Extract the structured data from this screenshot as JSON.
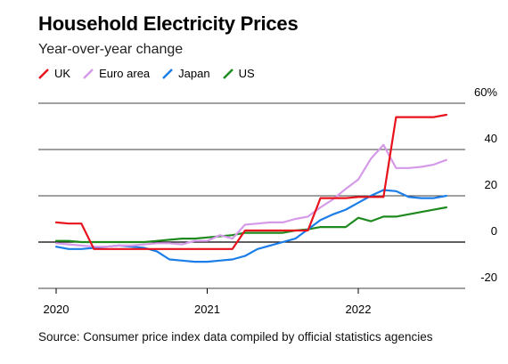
{
  "title": "Household Electricity Prices",
  "subtitle": "Year-over-year change",
  "source": "Source: Consumer price index data compiled by official statistics agencies",
  "chart_data": {
    "type": "line",
    "title": "Household Electricity Prices",
    "subtitle": "Year-over-year change",
    "xlabel": "",
    "ylabel": "",
    "y_unit": "%",
    "ylim": [
      -20,
      60
    ],
    "xlim": [
      "2019-12",
      "2022-09"
    ],
    "y_ticks": [
      "60%",
      "40",
      "20",
      "0",
      "-20"
    ],
    "y_tick_values": [
      60,
      40,
      20,
      0,
      -20
    ],
    "x_ticks": [
      "2020",
      "2021",
      "2022"
    ],
    "x_tick_values": [
      "2020-01",
      "2021-01",
      "2022-01"
    ],
    "grid": true,
    "legend_position": "top-left",
    "series": [
      {
        "name": "UK",
        "color": "#e8121c",
        "x": [
          "2020-01",
          "2020-02",
          "2020-03",
          "2020-04",
          "2020-05",
          "2020-06",
          "2020-07",
          "2020-08",
          "2020-09",
          "2020-10",
          "2020-11",
          "2020-12",
          "2021-01",
          "2021-02",
          "2021-03",
          "2021-04",
          "2021-05",
          "2021-06",
          "2021-07",
          "2021-08",
          "2021-09",
          "2021-10",
          "2021-11",
          "2021-12",
          "2022-01",
          "2022-02",
          "2022-03",
          "2022-04",
          "2022-05",
          "2022-06",
          "2022-07",
          "2022-08"
        ],
        "values": [
          8.5,
          8.0,
          8.0,
          -3.0,
          -3.0,
          -3.0,
          -3.0,
          -3.0,
          -3.0,
          -3.0,
          -3.0,
          -3.0,
          -3.0,
          -3.0,
          -3.0,
          5.0,
          5.0,
          5.0,
          5.0,
          5.0,
          5.0,
          19.0,
          19.0,
          19.0,
          19.5,
          19.5,
          19.5,
          54.0,
          54.0,
          54.0,
          54.0,
          55.0
        ]
      },
      {
        "name": "Euro area",
        "color": "#d59ae8",
        "x": [
          "2020-01",
          "2020-02",
          "2020-03",
          "2020-04",
          "2020-05",
          "2020-06",
          "2020-07",
          "2020-08",
          "2020-09",
          "2020-10",
          "2020-11",
          "2020-12",
          "2021-01",
          "2021-02",
          "2021-03",
          "2021-04",
          "2021-05",
          "2021-06",
          "2021-07",
          "2021-08",
          "2021-09",
          "2021-10",
          "2021-11",
          "2021-12",
          "2022-01",
          "2022-02",
          "2022-03",
          "2022-04",
          "2022-05",
          "2022-06",
          "2022-07",
          "2022-08"
        ],
        "values": [
          -0.5,
          -1.0,
          -1.5,
          -2.0,
          -2.0,
          -1.5,
          -1.5,
          -1.0,
          -0.5,
          -0.5,
          -1.0,
          0.5,
          0.5,
          3.0,
          1.5,
          7.5,
          8.0,
          8.5,
          8.5,
          10.0,
          11.0,
          15.0,
          18.5,
          23.0,
          27.0,
          36.0,
          42.0,
          32.0,
          32.0,
          32.5,
          33.5,
          35.5
        ]
      },
      {
        "name": "Japan",
        "color": "#1a7de8",
        "x": [
          "2020-01",
          "2020-02",
          "2020-03",
          "2020-04",
          "2020-05",
          "2020-06",
          "2020-07",
          "2020-08",
          "2020-09",
          "2020-10",
          "2020-11",
          "2020-12",
          "2021-01",
          "2021-02",
          "2021-03",
          "2021-04",
          "2021-05",
          "2021-06",
          "2021-07",
          "2021-08",
          "2021-09",
          "2021-10",
          "2021-11",
          "2021-12",
          "2022-01",
          "2022-02",
          "2022-03",
          "2022-04",
          "2022-05",
          "2022-06",
          "2022-07",
          "2022-08"
        ],
        "values": [
          -2.0,
          -3.0,
          -3.0,
          -2.5,
          -2.0,
          -1.5,
          -2.0,
          -2.5,
          -4.0,
          -7.5,
          -8.0,
          -8.5,
          -8.5,
          -8.0,
          -7.5,
          -6.0,
          -3.0,
          -1.5,
          0.0,
          1.5,
          5.5,
          9.5,
          12.0,
          14.0,
          17.0,
          20.0,
          22.5,
          22.0,
          19.5,
          19.0,
          19.0,
          20.0
        ]
      },
      {
        "name": "US",
        "color": "#1e8a1e",
        "x": [
          "2020-01",
          "2020-02",
          "2020-03",
          "2020-04",
          "2020-05",
          "2020-06",
          "2020-07",
          "2020-08",
          "2020-09",
          "2020-10",
          "2020-11",
          "2020-12",
          "2021-01",
          "2021-02",
          "2021-03",
          "2021-04",
          "2021-05",
          "2021-06",
          "2021-07",
          "2021-08",
          "2021-09",
          "2021-10",
          "2021-11",
          "2021-12",
          "2022-01",
          "2022-02",
          "2022-03",
          "2022-04",
          "2022-05",
          "2022-06",
          "2022-07",
          "2022-08"
        ],
        "values": [
          0.5,
          0.5,
          0.0,
          0.0,
          0.0,
          0.0,
          0.0,
          0.0,
          0.5,
          1.0,
          1.5,
          1.5,
          2.0,
          2.5,
          3.0,
          4.0,
          4.0,
          4.0,
          4.0,
          5.0,
          5.5,
          6.5,
          6.5,
          6.5,
          10.5,
          9.0,
          11.0,
          11.0,
          12.0,
          13.0,
          14.0,
          15.0
        ]
      }
    ]
  }
}
